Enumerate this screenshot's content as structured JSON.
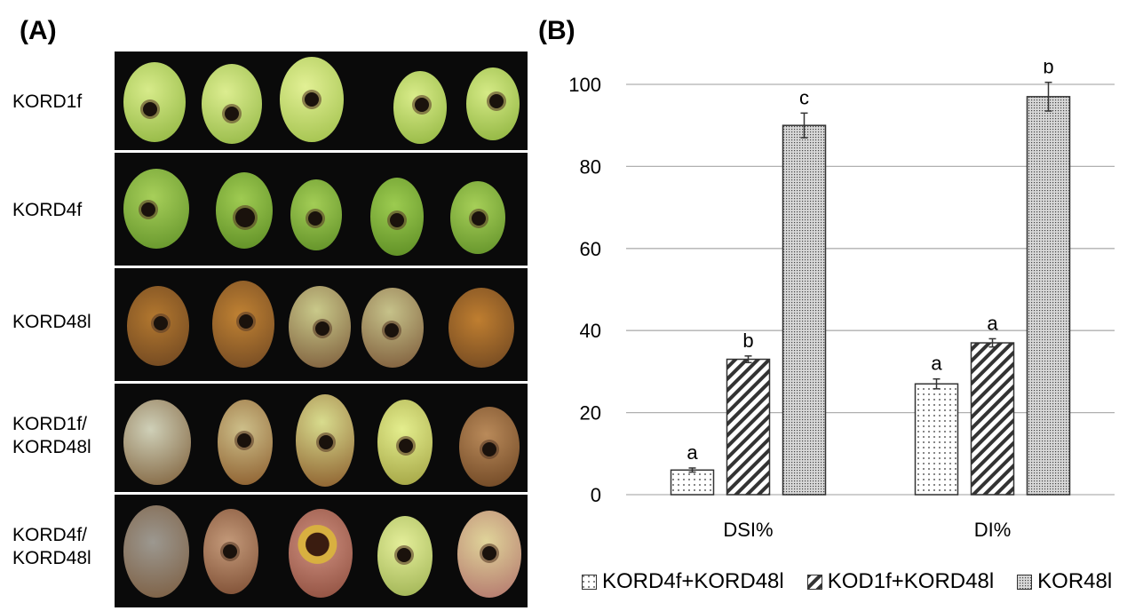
{
  "panels": {
    "a_label": "(A)",
    "b_label": "(B)"
  },
  "photo_rows": [
    {
      "label": "KORD1f"
    },
    {
      "label": "KORD4f"
    },
    {
      "label": "KORD48l"
    },
    {
      "label": "KORD1f/ KORD48l"
    },
    {
      "label": "KORD4f/ KORD48l"
    }
  ],
  "colors": {
    "healthy_fruit": "#a9c95a",
    "rotten_fruit": "#8a5a30",
    "bar_outline": "#333333",
    "gridline": "#b0b0b0"
  },
  "chart_data": {
    "type": "bar",
    "categories": [
      "DSI%",
      "DI%"
    ],
    "series": [
      {
        "name": "KORD4f+KORD48l",
        "pattern": "dots",
        "values": [
          6,
          27
        ],
        "errors": [
          0.5,
          1.2
        ],
        "labels": [
          "a",
          "a"
        ]
      },
      {
        "name": "KOD1f+KORD48l",
        "pattern": "diagonal-stripes",
        "values": [
          33,
          37
        ],
        "errors": [
          0.8,
          1.0
        ],
        "labels": [
          "b",
          "a"
        ]
      },
      {
        "name": "KOR48l",
        "pattern": "dense-dots",
        "values": [
          90,
          97
        ],
        "errors": [
          3.0,
          3.5
        ],
        "labels": [
          "c",
          "b"
        ]
      }
    ],
    "yticks": [
      "0",
      "20",
      "40",
      "60",
      "80",
      "100"
    ],
    "ylim": [
      0,
      100
    ],
    "grid": true,
    "legend_position": "bottom"
  }
}
